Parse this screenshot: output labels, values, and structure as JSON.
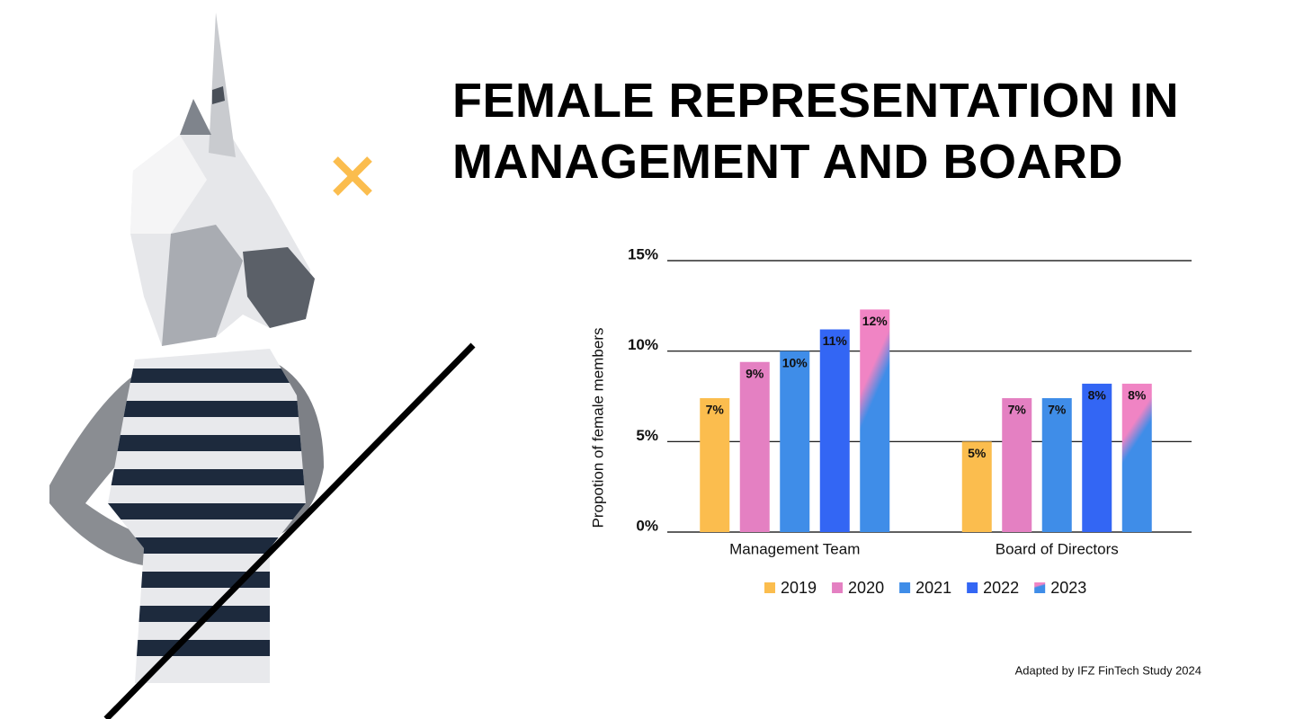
{
  "chart_data": {
    "type": "grouped_bar",
    "title": "FEMALE REPRESENTATION IN MANAGEMENT AND BOARD",
    "ylabel": "Propotion of female members",
    "source": "Adapted by IFZ FinTech Study 2024",
    "categories": [
      "Management Team",
      "Board of Directors"
    ],
    "series": [
      {
        "name": "2019",
        "color": "#fbbd4e",
        "values": [
          7.4,
          5.0
        ],
        "value_labels": [
          "7%",
          "5%"
        ]
      },
      {
        "name": "2020",
        "color": "#e480c2",
        "values": [
          9.4,
          7.4
        ],
        "value_labels": [
          "9%",
          "7%"
        ]
      },
      {
        "name": "2021",
        "color": "#3f8de8",
        "values": [
          10.0,
          7.4
        ],
        "value_labels": [
          "10%",
          "7%"
        ]
      },
      {
        "name": "2022",
        "color": "#3366f4",
        "values": [
          11.2,
          8.2
        ],
        "value_labels": [
          "11%",
          "8%"
        ]
      },
      {
        "name": "2023",
        "color": [
          "#f084c4",
          "#3f8de8"
        ],
        "values": [
          12.3,
          8.2
        ],
        "value_labels": [
          "12%",
          "8%"
        ]
      }
    ],
    "ylim": [
      0,
      15
    ],
    "yticks": [
      {
        "value": 0,
        "label": "0%"
      },
      {
        "value": 5,
        "label": "5%"
      },
      {
        "value": 10,
        "label": "10%"
      },
      {
        "value": 15,
        "label": "15%"
      }
    ],
    "grid": true
  }
}
